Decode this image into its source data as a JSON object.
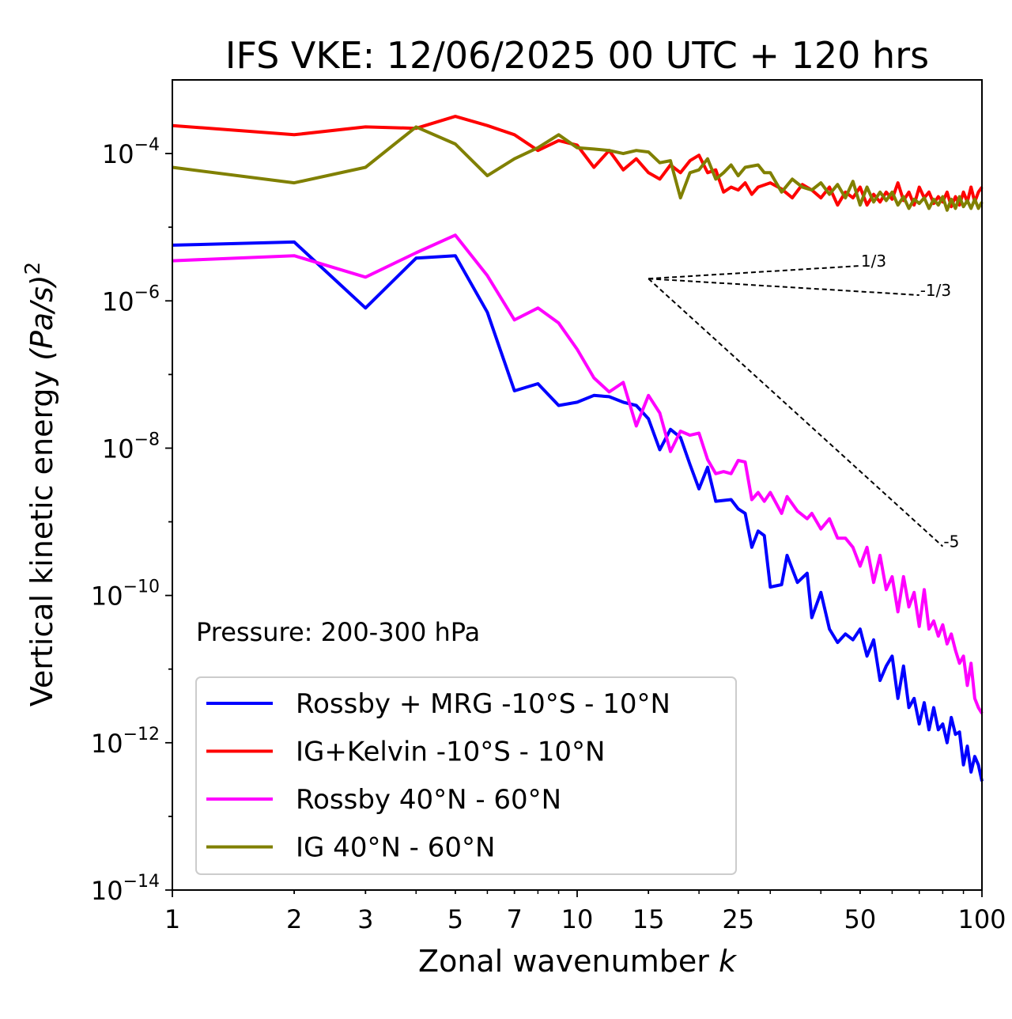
{
  "chart_data": {
    "type": "line",
    "title": "IFS VKE: 12/06/2025 00 UTC + 120 hrs",
    "xlabel": "Zonal wavenumber",
    "xlabel_var": "k",
    "ylabel": "Vertical kinetic energy",
    "ylabel_unit": "(Pa/s)",
    "ylabel_exp": "2",
    "xscale": "log",
    "yscale": "log",
    "xlim": [
      1,
      100
    ],
    "ylim": [
      1e-14,
      0.001
    ],
    "x_ticks": [
      1,
      2,
      3,
      5,
      7,
      10,
      15,
      25,
      50,
      100
    ],
    "x_tick_labels": [
      "1",
      "2",
      "3",
      "5",
      "7",
      "10",
      "15",
      "25",
      "50",
      "100"
    ],
    "y_ticks": [
      {
        "value": 0.0001,
        "base": "10",
        "exp": "−4"
      },
      {
        "value": 1e-06,
        "base": "10",
        "exp": "−6"
      },
      {
        "value": 1e-08,
        "base": "10",
        "exp": "−8"
      },
      {
        "value": 1e-10,
        "base": "10",
        "exp": "−10"
      },
      {
        "value": 1e-12,
        "base": "10",
        "exp": "−12"
      },
      {
        "value": 1e-14,
        "base": "10",
        "exp": "−14"
      }
    ],
    "annotation": "Pressure: 200-300 hPa",
    "legend_position": "lower-left",
    "grid": false,
    "series": [
      {
        "name": "Rossby + MRG -10°S - 10°N",
        "color": "#0000ff",
        "values": [
          [
            1,
            5.7e-06
          ],
          [
            2,
            6.3e-06
          ],
          [
            3,
            8e-07
          ],
          [
            4,
            3.8e-06
          ],
          [
            5,
            4.1e-06
          ],
          [
            6,
            7e-07
          ],
          [
            7,
            6e-08
          ],
          [
            8,
            7.5e-08
          ],
          [
            9,
            3.8e-08
          ],
          [
            10,
            4.2e-08
          ],
          [
            11,
            5.2e-08
          ],
          [
            12,
            5e-08
          ],
          [
            13,
            4.2e-08
          ],
          [
            14,
            3.8e-08
          ],
          [
            15,
            2.5e-08
          ],
          [
            16,
            9.5e-09
          ],
          [
            17,
            1.8e-08
          ],
          [
            18,
            1.4e-08
          ],
          [
            19,
            6e-09
          ],
          [
            20,
            2.8e-09
          ],
          [
            21,
            5.5e-09
          ],
          [
            22,
            1.9e-09
          ],
          [
            24,
            2e-09
          ],
          [
            25,
            1.5e-09
          ],
          [
            26,
            1.3e-09
          ],
          [
            27,
            4.5e-10
          ],
          [
            28,
            7.5e-10
          ],
          [
            29,
            6.5e-10
          ],
          [
            30,
            1.3e-10
          ],
          [
            32,
            1.4e-10
          ],
          [
            33,
            3.5e-10
          ],
          [
            35,
            1.5e-10
          ],
          [
            37,
            2e-10
          ],
          [
            38,
            5e-11
          ],
          [
            40,
            1.1e-10
          ],
          [
            42,
            3.5e-11
          ],
          [
            44,
            2.3e-11
          ],
          [
            46,
            3e-11
          ],
          [
            48,
            2.5e-11
          ],
          [
            50,
            3.5e-11
          ],
          [
            52,
            1.5e-11
          ],
          [
            54,
            2.5e-11
          ],
          [
            56,
            7e-12
          ],
          [
            58,
            1.1e-11
          ],
          [
            60,
            1.5e-11
          ],
          [
            62,
            4e-12
          ],
          [
            64,
            1.1e-11
          ],
          [
            66,
            3e-12
          ],
          [
            68,
            4e-12
          ],
          [
            70,
            1.8e-12
          ],
          [
            72,
            3.5e-12
          ],
          [
            74,
            1.5e-12
          ],
          [
            76,
            3e-12
          ],
          [
            78,
            1.5e-12
          ],
          [
            80,
            1.8e-12
          ],
          [
            82,
            1e-12
          ],
          [
            84,
            2.2e-12
          ],
          [
            86,
            1.3e-12
          ],
          [
            88,
            1.4e-12
          ],
          [
            90,
            5e-13
          ],
          [
            92,
            9e-13
          ],
          [
            94,
            4e-13
          ],
          [
            96,
            6.5e-13
          ],
          [
            98,
            5e-13
          ],
          [
            100,
            3e-13
          ]
        ]
      },
      {
        "name": "IG+Kelvin -10°S - 10°N",
        "color": "#ff0000",
        "values": [
          [
            1,
            0.00024
          ],
          [
            2,
            0.00018
          ],
          [
            3,
            0.00023
          ],
          [
            4,
            0.00022
          ],
          [
            5,
            0.00032
          ],
          [
            6,
            0.00024
          ],
          [
            7,
            0.00018
          ],
          [
            8,
            0.00011
          ],
          [
            9,
            0.00015
          ],
          [
            10,
            0.00013
          ],
          [
            11,
            6.5e-05
          ],
          [
            12,
            0.00011
          ],
          [
            13,
            6e-05
          ],
          [
            14,
            8.5e-05
          ],
          [
            15,
            5.5e-05
          ],
          [
            16,
            4.5e-05
          ],
          [
            17,
            7e-05
          ],
          [
            18,
            5.5e-05
          ],
          [
            19,
            8e-05
          ],
          [
            20,
            9.5e-05
          ],
          [
            21,
            5.5e-05
          ],
          [
            22,
            6e-05
          ],
          [
            23,
            3e-05
          ],
          [
            24,
            3.5e-05
          ],
          [
            25,
            3.2e-05
          ],
          [
            26,
            4e-05
          ],
          [
            27,
            2.8e-05
          ],
          [
            28,
            3.5e-05
          ],
          [
            30,
            4e-05
          ],
          [
            32,
            3.3e-05
          ],
          [
            34,
            2.5e-05
          ],
          [
            36,
            3.8e-05
          ],
          [
            38,
            3.2e-05
          ],
          [
            40,
            2.5e-05
          ],
          [
            42,
            3.5e-05
          ],
          [
            44,
            2e-05
          ],
          [
            46,
            3e-05
          ],
          [
            48,
            2.5e-05
          ],
          [
            50,
            3.5e-05
          ],
          [
            52,
            2e-05
          ],
          [
            54,
            2.8e-05
          ],
          [
            56,
            2.2e-05
          ],
          [
            58,
            3e-05
          ],
          [
            60,
            2.4e-05
          ],
          [
            62,
            4e-05
          ],
          [
            64,
            2.3e-05
          ],
          [
            66,
            3e-05
          ],
          [
            68,
            2e-05
          ],
          [
            70,
            3.5e-05
          ],
          [
            72,
            2.5e-05
          ],
          [
            74,
            3e-05
          ],
          [
            76,
            2.1e-05
          ],
          [
            78,
            2.6e-05
          ],
          [
            80,
            2.2e-05
          ],
          [
            82,
            3e-05
          ],
          [
            84,
            1.9e-05
          ],
          [
            86,
            2.6e-05
          ],
          [
            88,
            2e-05
          ],
          [
            90,
            3e-05
          ],
          [
            92,
            2.2e-05
          ],
          [
            94,
            3.5e-05
          ],
          [
            96,
            2.2e-05
          ],
          [
            98,
            3e-05
          ],
          [
            100,
            3.5e-05
          ]
        ]
      },
      {
        "name": "Rossby 40°N - 60°N",
        "color": "#ff00ff",
        "values": [
          [
            1,
            3.5e-06
          ],
          [
            2,
            4.1e-06
          ],
          [
            3,
            2.1e-06
          ],
          [
            4,
            4.5e-06
          ],
          [
            5,
            7.8e-06
          ],
          [
            6,
            2.2e-06
          ],
          [
            7,
            5.5e-07
          ],
          [
            8,
            8e-07
          ],
          [
            9,
            5e-07
          ],
          [
            10,
            2.2e-07
          ],
          [
            11,
            9e-08
          ],
          [
            12,
            5.8e-08
          ],
          [
            13,
            7.8e-08
          ],
          [
            14,
            2e-08
          ],
          [
            15,
            5.2e-08
          ],
          [
            16,
            3e-08
          ],
          [
            17,
            9e-09
          ],
          [
            18,
            1.7e-08
          ],
          [
            19,
            1.5e-08
          ],
          [
            20,
            1.6e-08
          ],
          [
            21,
            7e-09
          ],
          [
            22,
            4.5e-09
          ],
          [
            23,
            4.8e-09
          ],
          [
            24,
            4.5e-09
          ],
          [
            25,
            6.8e-09
          ],
          [
            26,
            6.5e-09
          ],
          [
            27,
            2e-09
          ],
          [
            28,
            2.5e-09
          ],
          [
            29,
            1.9e-09
          ],
          [
            30,
            2.5e-09
          ],
          [
            32,
            1.3e-09
          ],
          [
            33,
            2.2e-09
          ],
          [
            35,
            1.4e-09
          ],
          [
            37,
            1.1e-09
          ],
          [
            38,
            1.3e-09
          ],
          [
            40,
            8e-10
          ],
          [
            42,
            1.1e-09
          ],
          [
            44,
            6e-10
          ],
          [
            46,
            6e-10
          ],
          [
            48,
            4.5e-10
          ],
          [
            50,
            2.5e-10
          ],
          [
            52,
            4.5e-10
          ],
          [
            54,
            1.5e-10
          ],
          [
            56,
            3.5e-10
          ],
          [
            58,
            1.2e-10
          ],
          [
            60,
            1.8e-10
          ],
          [
            62,
            6e-11
          ],
          [
            64,
            1.8e-10
          ],
          [
            66,
            7e-11
          ],
          [
            68,
            1.1e-10
          ],
          [
            70,
            3.8e-11
          ],
          [
            72,
            1.2e-10
          ],
          [
            74,
            3.5e-11
          ],
          [
            76,
            4.5e-11
          ],
          [
            78,
            2.8e-11
          ],
          [
            80,
            4e-11
          ],
          [
            82,
            2.2e-11
          ],
          [
            84,
            3e-11
          ],
          [
            86,
            1.8e-11
          ],
          [
            88,
            1.2e-11
          ],
          [
            90,
            1.5e-11
          ],
          [
            92,
            6e-12
          ],
          [
            94,
            1.2e-11
          ],
          [
            96,
            4e-12
          ],
          [
            98,
            3e-12
          ],
          [
            100,
            2.5e-12
          ]
        ]
      },
      {
        "name": "IG 40°N - 60°N",
        "color": "#808000",
        "values": [
          [
            1,
            6.5e-05
          ],
          [
            2,
            4e-05
          ],
          [
            3,
            6.5e-05
          ],
          [
            4,
            0.00023
          ],
          [
            5,
            0.000135
          ],
          [
            6,
            5e-05
          ],
          [
            7,
            8.5e-05
          ],
          [
            8,
            0.00012
          ],
          [
            9,
            0.00018
          ],
          [
            10,
            0.00012
          ],
          [
            11,
            0.000115
          ],
          [
            12,
            0.00011
          ],
          [
            13,
            0.0001
          ],
          [
            14,
            0.00011
          ],
          [
            15,
            0.000105
          ],
          [
            16,
            7.5e-05
          ],
          [
            17,
            8e-05
          ],
          [
            18,
            2.5e-05
          ],
          [
            19,
            5.5e-05
          ],
          [
            20,
            6e-05
          ],
          [
            21,
            8.5e-05
          ],
          [
            22,
            4.5e-05
          ],
          [
            23,
            5.5e-05
          ],
          [
            24,
            7e-05
          ],
          [
            25,
            5e-05
          ],
          [
            26,
            6.5e-05
          ],
          [
            28,
            7e-05
          ],
          [
            29,
            5.5e-05
          ],
          [
            30,
            5.5e-05
          ],
          [
            32,
            3e-05
          ],
          [
            34,
            4.5e-05
          ],
          [
            36,
            3.5e-05
          ],
          [
            38,
            3.2e-05
          ],
          [
            40,
            4e-05
          ],
          [
            42,
            2.8e-05
          ],
          [
            44,
            3.8e-05
          ],
          [
            46,
            2.5e-05
          ],
          [
            48,
            4.2e-05
          ],
          [
            50,
            2e-05
          ],
          [
            52,
            3.5e-05
          ],
          [
            54,
            2.2e-05
          ],
          [
            56,
            3e-05
          ],
          [
            58,
            2.3e-05
          ],
          [
            60,
            3e-05
          ],
          [
            62,
            2e-05
          ],
          [
            64,
            2.6e-05
          ],
          [
            66,
            1.8e-05
          ],
          [
            68,
            2.4e-05
          ],
          [
            70,
            2.1e-05
          ],
          [
            72,
            2.5e-05
          ],
          [
            74,
            1.8e-05
          ],
          [
            76,
            2.4e-05
          ],
          [
            78,
            2e-05
          ],
          [
            80,
            2.6e-05
          ],
          [
            82,
            1.7e-05
          ],
          [
            84,
            2.4e-05
          ],
          [
            86,
            1.8e-05
          ],
          [
            88,
            2.6e-05
          ],
          [
            90,
            1.9e-05
          ],
          [
            92,
            2.3e-05
          ],
          [
            94,
            1.8e-05
          ],
          [
            96,
            2.4e-05
          ],
          [
            98,
            1.8e-05
          ],
          [
            100,
            2.2e-05
          ]
        ]
      }
    ],
    "reference_lines": [
      {
        "label": "1/3",
        "slope": 0.3333,
        "x0": 15,
        "y0": 2e-06,
        "x1": 50
      },
      {
        "label": "-1/3",
        "slope": -0.3333,
        "x0": 15,
        "y0": 2e-06,
        "x1": 70
      },
      {
        "label": "-5",
        "slope": -5,
        "x0": 15,
        "y0": 2e-06,
        "x1": 80
      }
    ]
  }
}
